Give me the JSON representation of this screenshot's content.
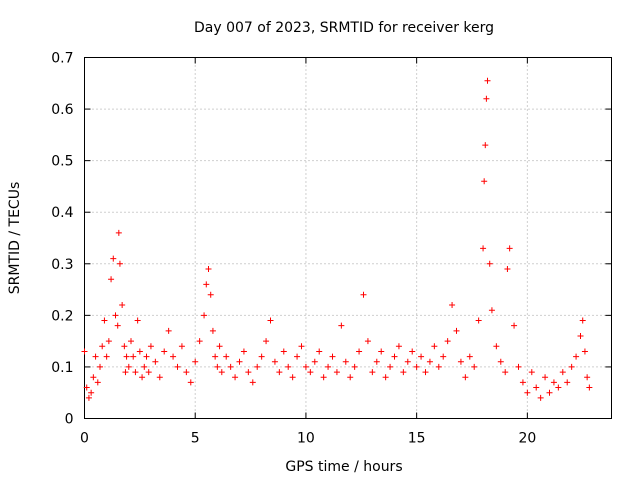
{
  "chart_data": {
    "type": "scatter",
    "title": "Day 007 of 2023, SRMTID for receiver kerg",
    "xlabel": "GPS time / hours",
    "ylabel": "SRMTID / TECUs",
    "xlim": [
      0,
      23.8
    ],
    "ylim": [
      0,
      0.7
    ],
    "xticks": [
      0,
      5,
      10,
      15,
      20
    ],
    "xtick_labels": [
      "0",
      "5",
      "10",
      "15",
      "20"
    ],
    "yticks": [
      0,
      0.1,
      0.2,
      0.3,
      0.4,
      0.5,
      0.6,
      0.7
    ],
    "ytick_labels": [
      "0",
      "0.1",
      "0.2",
      "0.3",
      "0.4",
      "0.5",
      "0.6",
      "0.7"
    ],
    "grid": true,
    "marker": "+",
    "color": "#ff0000",
    "series": [
      {
        "name": "SRMTID",
        "x": [
          0.0,
          0.1,
          0.2,
          0.3,
          0.4,
          0.5,
          0.6,
          0.7,
          0.8,
          0.9,
          1.0,
          1.1,
          1.2,
          1.3,
          1.4,
          1.5,
          1.55,
          1.6,
          1.7,
          1.8,
          1.85,
          1.9,
          2.0,
          2.1,
          2.2,
          2.3,
          2.4,
          2.5,
          2.6,
          2.7,
          2.8,
          2.9,
          3.0,
          3.2,
          3.4,
          3.6,
          3.8,
          4.0,
          4.2,
          4.4,
          4.6,
          4.8,
          5.0,
          5.2,
          5.4,
          5.5,
          5.6,
          5.7,
          5.8,
          5.9,
          6.0,
          6.1,
          6.2,
          6.4,
          6.6,
          6.8,
          7.0,
          7.2,
          7.4,
          7.6,
          7.8,
          8.0,
          8.2,
          8.4,
          8.6,
          8.8,
          9.0,
          9.2,
          9.4,
          9.6,
          9.8,
          10.0,
          10.2,
          10.4,
          10.6,
          10.8,
          11.0,
          11.2,
          11.4,
          11.6,
          11.8,
          12.0,
          12.2,
          12.4,
          12.6,
          12.8,
          13.0,
          13.2,
          13.4,
          13.6,
          13.8,
          14.0,
          14.2,
          14.4,
          14.6,
          14.8,
          15.0,
          15.2,
          15.4,
          15.6,
          15.8,
          16.0,
          16.2,
          16.4,
          16.6,
          16.8,
          17.0,
          17.2,
          17.4,
          17.6,
          17.8,
          18.0,
          18.05,
          18.1,
          18.15,
          18.2,
          18.3,
          18.4,
          18.6,
          18.8,
          19.0,
          19.1,
          19.2,
          19.4,
          19.6,
          19.8,
          20.0,
          20.2,
          20.4,
          20.6,
          20.8,
          21.0,
          21.2,
          21.4,
          21.6,
          21.8,
          22.0,
          22.2,
          22.4,
          22.5,
          22.6,
          22.7,
          22.8
        ],
        "y": [
          0.13,
          0.06,
          0.04,
          0.05,
          0.08,
          0.12,
          0.07,
          0.1,
          0.14,
          0.19,
          0.12,
          0.15,
          0.27,
          0.31,
          0.2,
          0.18,
          0.36,
          0.3,
          0.22,
          0.14,
          0.09,
          0.12,
          0.1,
          0.15,
          0.12,
          0.09,
          0.19,
          0.13,
          0.08,
          0.1,
          0.12,
          0.09,
          0.14,
          0.11,
          0.08,
          0.13,
          0.17,
          0.12,
          0.1,
          0.14,
          0.09,
          0.07,
          0.11,
          0.15,
          0.2,
          0.26,
          0.29,
          0.24,
          0.17,
          0.12,
          0.1,
          0.14,
          0.09,
          0.12,
          0.1,
          0.08,
          0.11,
          0.13,
          0.09,
          0.07,
          0.1,
          0.12,
          0.15,
          0.19,
          0.11,
          0.09,
          0.13,
          0.1,
          0.08,
          0.12,
          0.14,
          0.1,
          0.09,
          0.11,
          0.13,
          0.08,
          0.1,
          0.12,
          0.09,
          0.18,
          0.11,
          0.08,
          0.1,
          0.13,
          0.24,
          0.15,
          0.09,
          0.11,
          0.13,
          0.08,
          0.1,
          0.12,
          0.14,
          0.09,
          0.11,
          0.13,
          0.1,
          0.12,
          0.09,
          0.11,
          0.14,
          0.1,
          0.12,
          0.15,
          0.22,
          0.17,
          0.11,
          0.08,
          0.12,
          0.1,
          0.19,
          0.33,
          0.46,
          0.53,
          0.62,
          0.655,
          0.3,
          0.21,
          0.14,
          0.11,
          0.09,
          0.29,
          0.33,
          0.18,
          0.1,
          0.07,
          0.05,
          0.09,
          0.06,
          0.04,
          0.08,
          0.05,
          0.07,
          0.06,
          0.09,
          0.07,
          0.1,
          0.12,
          0.16,
          0.19,
          0.13,
          0.08,
          0.06
        ]
      }
    ]
  }
}
